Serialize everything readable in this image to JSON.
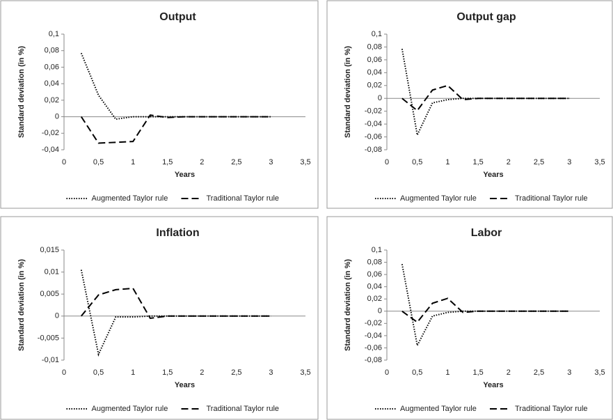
{
  "chart_data": [
    {
      "type": "line",
      "title": "Output",
      "x_label": "Years",
      "y_label": "Standard deviation (in %)",
      "x": [
        0.25,
        0.5,
        0.75,
        1,
        1.25,
        1.5,
        1.75,
        2,
        2.25,
        2.5,
        2.75,
        3
      ],
      "series": [
        {
          "name": "Augmented Taylor rule",
          "color": "#000000",
          "dash": "dotted",
          "values": [
            0.077,
            0.026,
            -0.003,
            0,
            0,
            0,
            0,
            0,
            0,
            0,
            0,
            0
          ]
        },
        {
          "name": "Traditional Taylor rule",
          "color": "#000000",
          "dash": "dashed",
          "values": [
            0,
            -0.032,
            -0.031,
            -0.03,
            0.002,
            -0.001,
            0,
            0,
            0,
            0,
            0,
            0
          ]
        }
      ],
      "xlim": [
        0,
        3.5
      ],
      "xticks": [
        0,
        {
          "value": 0.5,
          "label": "0,5"
        },
        1,
        {
          "value": 1.5,
          "label": "1,5"
        },
        2,
        {
          "value": 2.5,
          "label": "2,5"
        },
        3,
        {
          "value": 3.5,
          "label": "3,5"
        }
      ],
      "ylim": [
        -0.04,
        0.1
      ],
      "yticks": [
        {
          "value": -0.04,
          "label": "-0,04"
        },
        {
          "value": -0.02,
          "label": "-0,02"
        },
        0,
        {
          "value": 0.02,
          "label": "0,02"
        },
        {
          "value": 0.04,
          "label": "0,04"
        },
        {
          "value": 0.06,
          "label": "0,06"
        },
        {
          "value": 0.08,
          "label": "0,08"
        },
        {
          "value": 0.1,
          "label": "0,1"
        }
      ],
      "legend": "bottom"
    },
    {
      "type": "line",
      "title": "Output gap",
      "x_label": "Years",
      "y_label": "Standard deviation (in %)",
      "x": [
        0.25,
        0.5,
        0.75,
        1,
        1.25,
        1.5,
        1.75,
        2,
        2.25,
        2.5,
        2.75,
        3
      ],
      "series": [
        {
          "name": "Augmented Taylor rule",
          "color": "#000000",
          "dash": "dotted",
          "values": [
            0.077,
            -0.057,
            -0.007,
            -0.002,
            0,
            0,
            0,
            0,
            0,
            0,
            0,
            0
          ]
        },
        {
          "name": "Traditional Taylor rule",
          "color": "#000000",
          "dash": "dashed",
          "values": [
            0,
            -0.019,
            0.013,
            0.02,
            -0.002,
            0,
            0,
            0,
            0,
            0,
            0,
            0
          ]
        }
      ],
      "xlim": [
        0,
        3.5
      ],
      "xticks": [
        0,
        {
          "value": 0.5,
          "label": "0,5"
        },
        1,
        {
          "value": 1.5,
          "label": "1,5"
        },
        2,
        {
          "value": 2.5,
          "label": "2,5"
        },
        3,
        {
          "value": 3.5,
          "label": "3,5"
        }
      ],
      "ylim": [
        -0.08,
        0.1
      ],
      "yticks": [
        {
          "value": -0.08,
          "label": "-0,08"
        },
        {
          "value": -0.06,
          "label": "-0,06"
        },
        {
          "value": -0.04,
          "label": "-0,04"
        },
        {
          "value": -0.02,
          "label": "-0,02"
        },
        0,
        {
          "value": 0.02,
          "label": "0,02"
        },
        {
          "value": 0.04,
          "label": "0,04"
        },
        {
          "value": 0.06,
          "label": "0,06"
        },
        {
          "value": 0.08,
          "label": "0,08"
        },
        {
          "value": 0.1,
          "label": "0,1"
        }
      ],
      "legend": "bottom"
    },
    {
      "type": "line",
      "title": "Inflation",
      "x_label": "Years",
      "y_label": "Standard deviation (in %)",
      "x": [
        0.25,
        0.5,
        0.75,
        1,
        1.25,
        1.5,
        1.75,
        2,
        2.25,
        2.5,
        2.75,
        3
      ],
      "series": [
        {
          "name": "Augmented Taylor rule",
          "color": "#000000",
          "dash": "dotted",
          "values": [
            0.0105,
            -0.0087,
            -0.0002,
            -0.0002,
            0,
            0,
            0,
            0,
            0,
            0,
            0,
            0
          ]
        },
        {
          "name": "Traditional Taylor rule",
          "color": "#000000",
          "dash": "dashed",
          "values": [
            0,
            0.0048,
            0.006,
            0.0063,
            -0.0005,
            0,
            0,
            0,
            0,
            0,
            0,
            0
          ]
        }
      ],
      "xlim": [
        0,
        3.5
      ],
      "xticks": [
        0,
        {
          "value": 0.5,
          "label": "0,5"
        },
        1,
        {
          "value": 1.5,
          "label": "1,5"
        },
        2,
        {
          "value": 2.5,
          "label": "2,5"
        },
        3,
        {
          "value": 3.5,
          "label": "3,5"
        }
      ],
      "ylim": [
        -0.01,
        0.015
      ],
      "yticks": [
        {
          "value": -0.01,
          "label": "-0,01"
        },
        {
          "value": -0.005,
          "label": "-0,005"
        },
        0,
        {
          "value": 0.005,
          "label": "0,005"
        },
        {
          "value": 0.01,
          "label": "0,01"
        },
        {
          "value": 0.015,
          "label": "0,015"
        }
      ],
      "legend": "bottom"
    },
    {
      "type": "line",
      "title": "Labor",
      "x_label": "Years",
      "y_label": "Standard deviation (in %)",
      "x": [
        0.25,
        0.5,
        0.75,
        1,
        1.25,
        1.5,
        1.75,
        2,
        2.25,
        2.5,
        2.75,
        3
      ],
      "series": [
        {
          "name": "Augmented Taylor rule",
          "color": "#000000",
          "dash": "dotted",
          "values": [
            0.077,
            -0.056,
            -0.008,
            -0.002,
            0,
            0,
            0,
            0,
            0,
            0,
            0,
            0
          ]
        },
        {
          "name": "Traditional Taylor rule",
          "color": "#000000",
          "dash": "dashed",
          "values": [
            0,
            -0.018,
            0.013,
            0.021,
            -0.002,
            0,
            0,
            0,
            0,
            0,
            0,
            0
          ]
        }
      ],
      "xlim": [
        0,
        3.5
      ],
      "xticks": [
        0,
        {
          "value": 0.5,
          "label": "0,5"
        },
        1,
        {
          "value": 1.5,
          "label": "1,5"
        },
        2,
        {
          "value": 2.5,
          "label": "2,5"
        },
        3,
        {
          "value": 3.5,
          "label": "3,5"
        }
      ],
      "ylim": [
        -0.08,
        0.1
      ],
      "yticks": [
        {
          "value": -0.08,
          "label": "-0,08"
        },
        {
          "value": -0.06,
          "label": "-0,06"
        },
        {
          "value": -0.04,
          "label": "-0,04"
        },
        {
          "value": -0.02,
          "label": "-0,02"
        },
        0,
        {
          "value": 0.02,
          "label": "0,02"
        },
        {
          "value": 0.04,
          "label": "0,04"
        },
        {
          "value": 0.06,
          "label": "0,06"
        },
        {
          "value": 0.08,
          "label": "0,08"
        },
        {
          "value": 0.1,
          "label": "0,1"
        }
      ],
      "legend": "bottom"
    }
  ]
}
